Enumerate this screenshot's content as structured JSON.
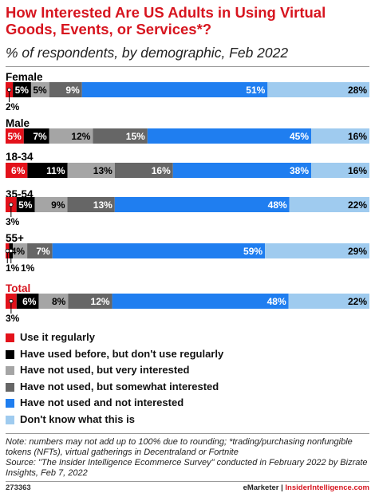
{
  "title": "How Interested Are US Adults in Using Virtual Goods, Events, or Services*?",
  "subtitle": "% of respondents, by demographic, Feb 2022",
  "chart_data": {
    "type": "bar",
    "orientation": "horizontal",
    "stacked": true,
    "categories": [
      "Female",
      "Male",
      "18-34",
      "35-54",
      "55+",
      "Total"
    ],
    "category_colors": [
      "#000000",
      "#000000",
      "#000000",
      "#000000",
      "#000000",
      "#d7151f"
    ],
    "series": [
      {
        "name": "Use it regularly",
        "color": "#e3121b",
        "values": [
          2,
          5,
          6,
          3,
          1,
          3
        ],
        "labels": [
          "2%",
          "5%",
          "6%",
          "3%",
          "1%",
          "3%"
        ]
      },
      {
        "name": "Have used before, but don't use regularly",
        "color": "#000000",
        "values": [
          5,
          7,
          11,
          5,
          1,
          6
        ],
        "labels": [
          "5%",
          "7%",
          "11%",
          "5%",
          "1%",
          "6%"
        ]
      },
      {
        "name": "Have not used, but very interested",
        "color": "#a5a5a5",
        "values": [
          5,
          12,
          13,
          9,
          4,
          8
        ],
        "labels": [
          "5%",
          "12%",
          "13%",
          "9%",
          "4%",
          "8%"
        ]
      },
      {
        "name": "Have not used, but somewhat interested",
        "color": "#666666",
        "values": [
          9,
          15,
          16,
          13,
          7,
          12
        ],
        "labels": [
          "9%",
          "15%",
          "16%",
          "13%",
          "7%",
          "12%"
        ]
      },
      {
        "name": "Have not used and not interested",
        "color": "#1f7ef0",
        "values": [
          51,
          45,
          38,
          48,
          59,
          48
        ],
        "labels": [
          "51%",
          "45%",
          "38%",
          "48%",
          "59%",
          "48%"
        ]
      },
      {
        "name": "Don't know what this is",
        "color": "#9fcbef",
        "values": [
          28,
          16,
          16,
          22,
          29,
          22
        ],
        "labels": [
          "28%",
          "16%",
          "16%",
          "22%",
          "29%",
          "22%"
        ]
      }
    ]
  },
  "note": "Note: numbers may not add up to 100% due to rounding; *trading/purchasing nonfungible tokens (NFTs), virtual gatherings in Decentraland or Fortnite",
  "source": "Source: \"The Insider Intelligence Ecommerce Survey\" conducted in February 2022 by Bizrate Insights, Feb 7, 2022",
  "footer": {
    "chart_id": "273363",
    "brand_left": "eMarketer",
    "brand_divider": " | ",
    "brand_right": "InsiderIntelligence.com"
  }
}
